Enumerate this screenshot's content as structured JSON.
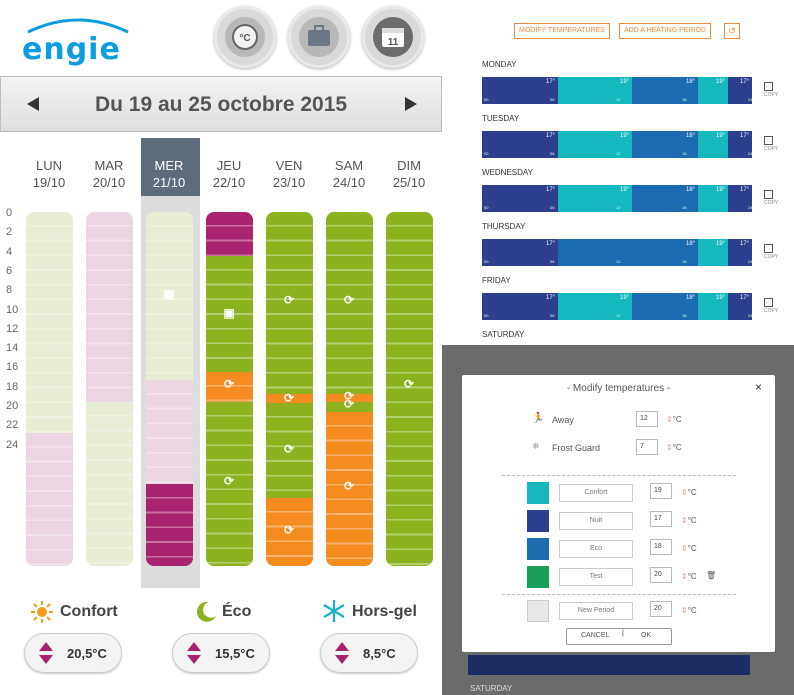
{
  "left_panel": {
    "logo_text": "engie",
    "header_buttons": [
      {
        "icon": "thermostat-icon",
        "label": "°C"
      },
      {
        "icon": "suitcase-icon",
        "label": ""
      },
      {
        "icon": "calendar-icon",
        "label": "11"
      }
    ],
    "week_title": "Du 19 au 25 octobre 2015",
    "days": [
      {
        "name": "LUN",
        "date": "19/10"
      },
      {
        "name": "MAR",
        "date": "20/10"
      },
      {
        "name": "MER",
        "date": "21/10"
      },
      {
        "name": "JEU",
        "date": "22/10"
      },
      {
        "name": "VEN",
        "date": "23/10"
      },
      {
        "name": "SAM",
        "date": "24/10"
      },
      {
        "name": "DIM",
        "date": "25/10"
      }
    ],
    "selected_day": "MER",
    "hours": [
      "0",
      "2",
      "4",
      "6",
      "8",
      "10",
      "12",
      "14",
      "16",
      "18",
      "20",
      "22",
      "24"
    ],
    "modes": [
      {
        "label": "Confort",
        "value": "20,5°C",
        "icon": "sun-icon",
        "color": "#f39a1f"
      },
      {
        "label": "Éco",
        "value": "15,5°C",
        "icon": "moon-icon",
        "color": "#8cb21f"
      },
      {
        "label": "Hors-gel",
        "value": "8,5°C",
        "icon": "snowflake-icon",
        "color": "#18b0c8"
      }
    ],
    "colors": {
      "brand": "#0a9de0",
      "magenta": "#a8246e",
      "green": "#8cb21f",
      "orange": "#f58c1f",
      "pale_green": "#e8edd6",
      "pale_pink": "#ebd5e2"
    }
  },
  "schedule_panel": {
    "buttons": [
      "MODIFY TEMPERATURES",
      "ADD A HEATING PERIOD"
    ],
    "copy_label": "COPY",
    "days": [
      {
        "name": "MONDAY",
        "temps": [
          "17°",
          "19°",
          "18°",
          "19°",
          "17°"
        ]
      },
      {
        "name": "TUESDAY",
        "temps": [
          "17°",
          "19°",
          "18°",
          "19°",
          "17°"
        ]
      },
      {
        "name": "WEDNESDAY",
        "temps": [
          "17°",
          "19°",
          "18°",
          "19°",
          "17°"
        ]
      },
      {
        "name": "THURSDAY",
        "temps": [
          "17°",
          "18°",
          "19°",
          "17°"
        ]
      },
      {
        "name": "FRIDAY",
        "temps": [
          "17°",
          "19°",
          "18°",
          "19°",
          "17°"
        ]
      },
      {
        "name": "SATURDAY",
        "temps": []
      }
    ],
    "ticks": [
      "00",
      "06",
      "12",
      "18",
      "24"
    ],
    "colors": {
      "nuit": "#2f3f8f",
      "confort": "#16b8c0",
      "eco": "#1b6bb0"
    }
  },
  "modal": {
    "title": "- Modify temperatures -",
    "close": "×",
    "unit": "°C",
    "special": [
      {
        "icon": "running-person-icon",
        "label": "Away",
        "value": "12"
      },
      {
        "icon": "snowflake-icon",
        "label": "Frost Guard",
        "value": "7"
      }
    ],
    "periods": [
      {
        "name": "Confort",
        "value": "19",
        "color": "#16b8c0"
      },
      {
        "name": "Nuit",
        "value": "17",
        "color": "#2f3f8f"
      },
      {
        "name": "Eco",
        "value": "18",
        "color": "#1b6bb0"
      },
      {
        "name": "Test",
        "value": "20",
        "color": "#18a058"
      }
    ],
    "new_period": {
      "name": "New Period",
      "value": "20",
      "color": "#e8e8e8"
    },
    "cancel": "CANCEL",
    "ok": "OK",
    "background_day": "SATURDAY"
  }
}
